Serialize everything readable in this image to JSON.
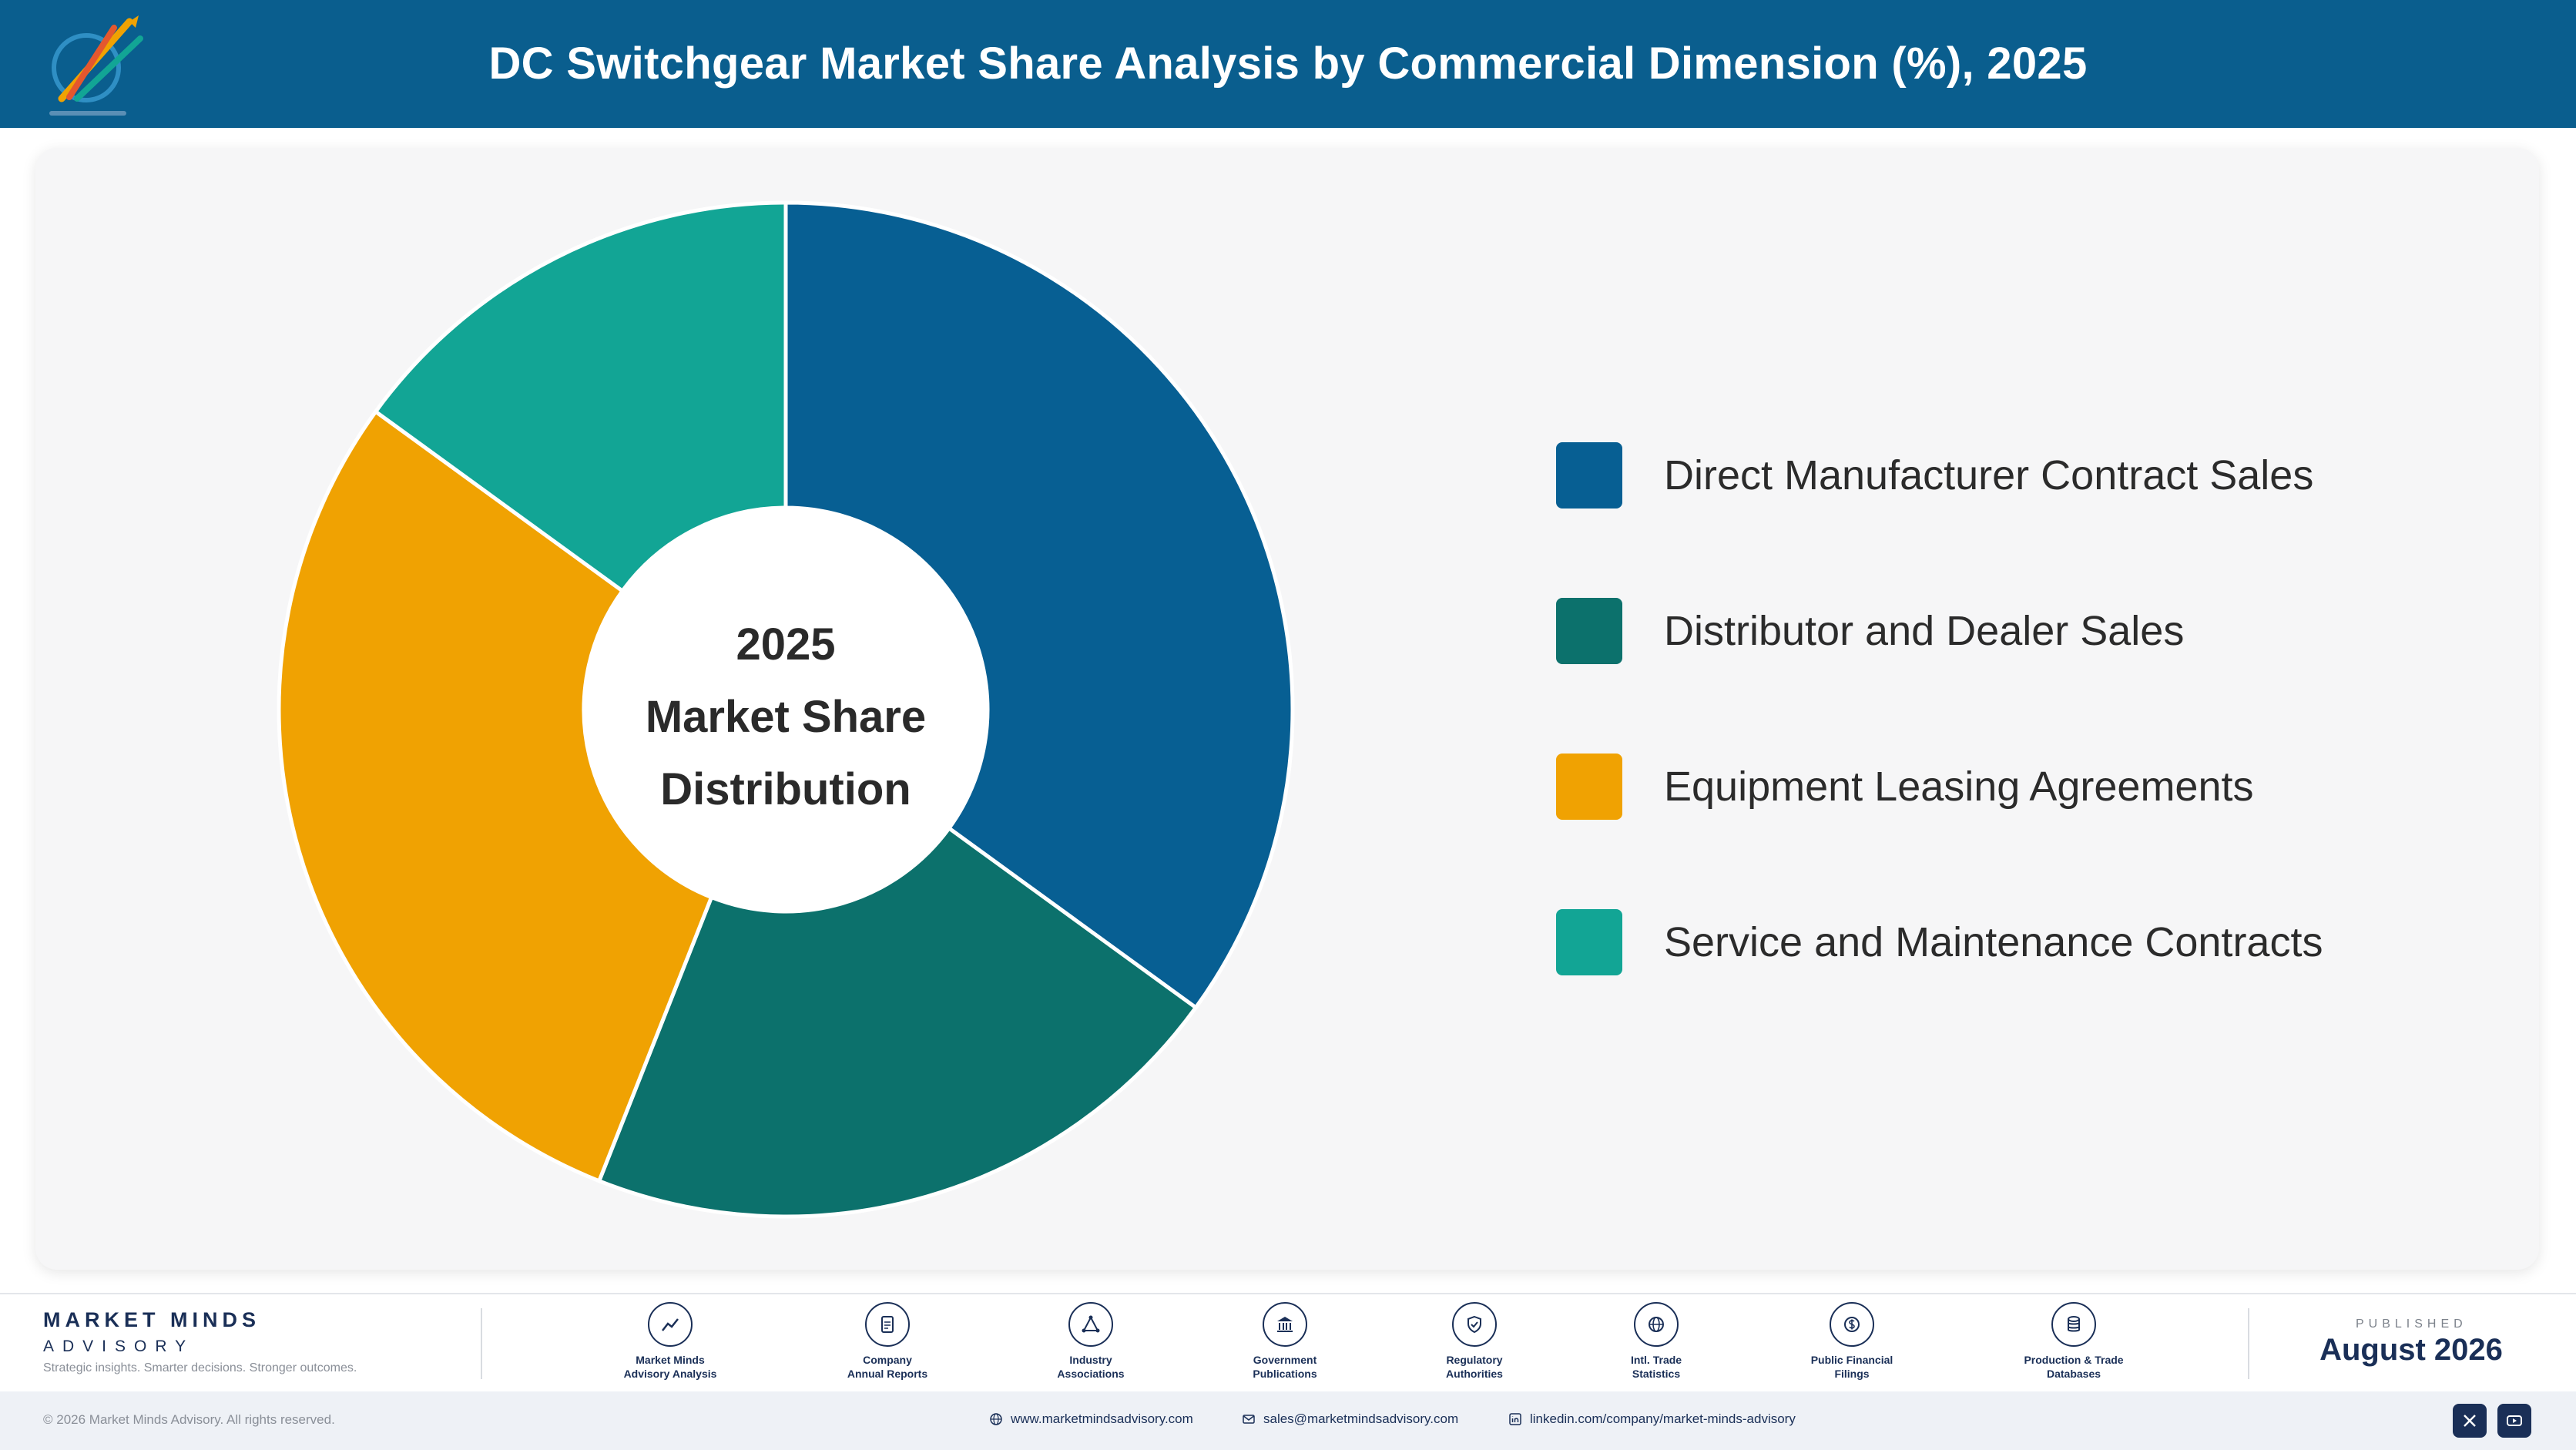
{
  "header": {
    "title": "DC Switchgear Market Share Analysis by Commercial Dimension (%), 2025"
  },
  "chart_data": {
    "type": "pie",
    "title": "DC Switchgear Market Share Analysis by Commercial Dimension (%), 2025",
    "center_label": [
      "2025",
      "Market Share",
      "Distribution"
    ],
    "categories": [
      "Direct Manufacturer Contract Sales",
      "Distributor and Dealer Sales",
      "Equipment Leasing Agreements",
      "Service and Maintenance Contracts"
    ],
    "values": [
      35,
      21,
      29,
      15
    ],
    "colors": [
      "#075f93",
      "#0c716c",
      "#f0a202",
      "#12a595"
    ],
    "legend_position": "right",
    "donut": true
  },
  "footer": {
    "brand_name": "MARKET MINDS",
    "brand_sub": "ADVISORY",
    "tagline": "Strategic insights. Smarter decisions. Stronger outcomes.",
    "sources": [
      {
        "label": "Market Minds\nAdvisory Analysis",
        "icon": "chart-icon"
      },
      {
        "label": "Company\nAnnual Reports",
        "icon": "document-icon"
      },
      {
        "label": "Industry\nAssociations",
        "icon": "network-icon"
      },
      {
        "label": "Government\nPublications",
        "icon": "building-icon"
      },
      {
        "label": "Regulatory\nAuthorities",
        "icon": "shield-icon"
      },
      {
        "label": "Intl. Trade\nStatistics",
        "icon": "globe-icon"
      },
      {
        "label": "Public Financial\nFilings",
        "icon": "coin-icon"
      },
      {
        "label": "Production & Trade\nDatabases",
        "icon": "database-icon"
      }
    ],
    "published_label": "PUBLISHED",
    "published_date": "August 2026",
    "copyright": "© 2026 Market Minds Advisory. All rights reserved.",
    "website": "www.marketmindsadvisory.com",
    "email": "sales@marketmindsadvisory.com",
    "linkedin": "linkedin.com/company/market-minds-advisory",
    "social": [
      "x-icon",
      "youtube-icon"
    ]
  }
}
